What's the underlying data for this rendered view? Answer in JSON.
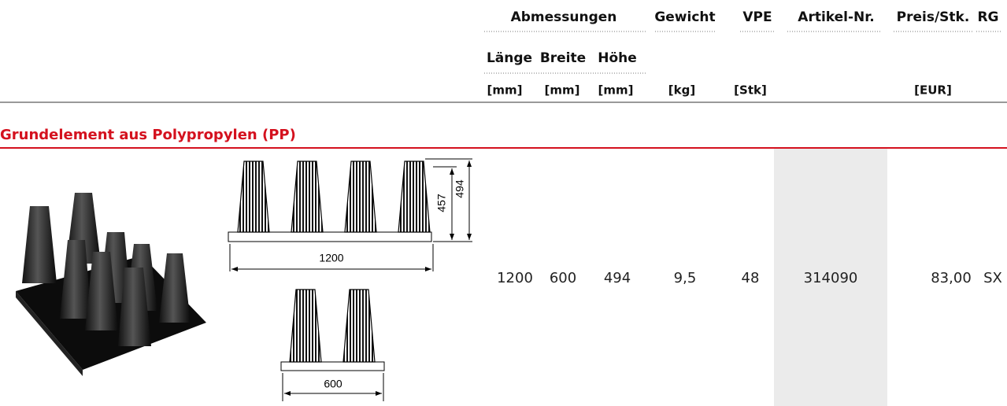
{
  "header": {
    "group": "Abmessungen",
    "columns": [
      "Gewicht",
      "VPE",
      "Artikel-Nr.",
      "Preis/Stk.",
      "RG"
    ],
    "subcolumns": [
      "Länge",
      "Breite",
      "Höhe"
    ],
    "units": [
      "[mm]",
      "[mm]",
      "[mm]",
      "[kg]",
      "[Stk]",
      "[EUR]"
    ]
  },
  "section": {
    "title": "Grundelement aus Polypropylen (PP)",
    "drawing": {
      "labels": [
        "457",
        "494",
        "1200",
        "600"
      ]
    },
    "row": [
      "1200",
      "600",
      "494",
      "9,5",
      "48",
      "314090",
      "83,00",
      "SX"
    ]
  }
}
